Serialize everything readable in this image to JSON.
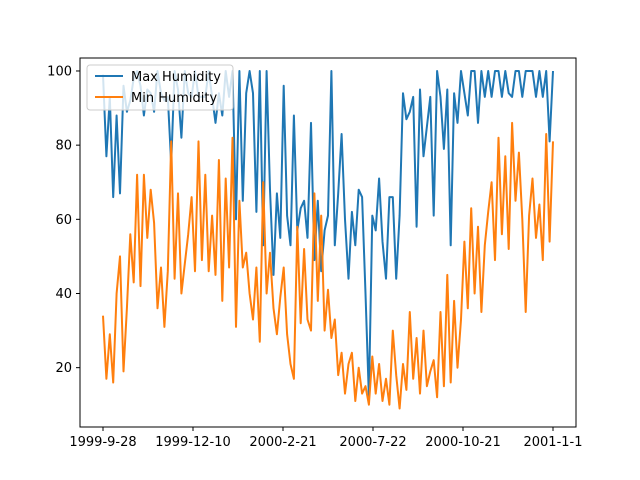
{
  "chart_data": {
    "type": "line",
    "title": "",
    "xlabel": "",
    "ylabel": "",
    "grid": false,
    "legend_position": "upper-left",
    "x_tick_labels": [
      "1999-9-28",
      "1999-12-10",
      "2000-2-21",
      "2000-7-22",
      "2000-10-21",
      "2001-1-1"
    ],
    "y_ticks": [
      20,
      40,
      60,
      80,
      100
    ],
    "ylim": [
      4,
      103.5
    ],
    "series": [
      {
        "name": "Max Humidity",
        "color": "#1f77b4",
        "values": [
          99,
          77,
          93,
          66,
          88,
          67,
          96,
          89,
          92,
          98,
          100,
          96,
          88,
          95,
          94,
          89,
          100,
          94,
          92,
          93,
          75,
          100,
          95,
          82,
          100,
          94,
          93,
          100,
          93,
          93,
          93,
          100,
          93,
          86,
          94,
          88,
          100,
          93,
          100,
          60,
          100,
          65,
          94,
          100,
          94,
          62,
          100,
          53,
          100,
          68,
          45,
          67,
          55,
          96,
          61,
          53,
          88,
          57,
          63,
          65,
          55,
          86,
          49,
          65,
          46,
          57,
          61,
          100,
          53,
          67,
          83,
          60,
          44,
          62,
          53,
          68,
          66,
          40,
          12,
          61,
          57,
          71,
          54,
          44,
          66,
          66,
          44,
          61,
          94,
          87,
          89,
          93,
          58,
          95,
          77,
          85,
          93,
          61,
          100,
          93,
          79,
          95,
          53,
          94,
          86,
          100,
          94,
          88,
          100,
          100,
          86,
          100,
          93,
          100,
          93,
          100,
          100,
          93,
          100,
          94,
          93,
          100,
          100,
          93,
          100,
          100,
          100,
          93,
          100,
          93,
          100,
          81,
          100
        ]
      },
      {
        "name": "Min Humidity",
        "color": "#ff7f0e",
        "values": [
          34,
          17,
          29,
          16,
          40,
          50,
          19,
          36,
          56,
          43,
          72,
          42,
          72,
          55,
          68,
          59,
          36,
          47,
          31,
          46,
          81,
          44,
          67,
          40,
          48,
          56,
          66,
          46,
          81,
          49,
          72,
          46,
          61,
          45,
          76,
          38,
          71,
          47,
          82,
          31,
          65,
          47,
          51,
          40,
          33,
          47,
          27,
          70,
          40,
          51,
          36,
          29,
          39,
          47,
          29,
          21,
          17,
          58,
          32,
          52,
          33,
          30,
          67,
          38,
          61,
          30,
          41,
          28,
          33,
          18,
          24,
          13,
          21,
          24,
          11,
          20,
          13,
          15,
          10,
          23,
          13,
          21,
          11,
          17,
          10,
          30,
          18,
          9,
          21,
          14,
          35,
          17,
          28,
          13,
          30,
          15,
          19,
          22,
          12,
          35,
          15,
          45,
          16,
          38,
          20,
          33,
          54,
          36,
          63,
          40,
          58,
          35,
          53,
          62,
          70,
          49,
          82,
          56,
          77,
          52,
          86,
          65,
          78,
          60,
          35,
          61,
          71,
          55,
          64,
          49,
          83,
          54,
          81
        ]
      }
    ]
  }
}
